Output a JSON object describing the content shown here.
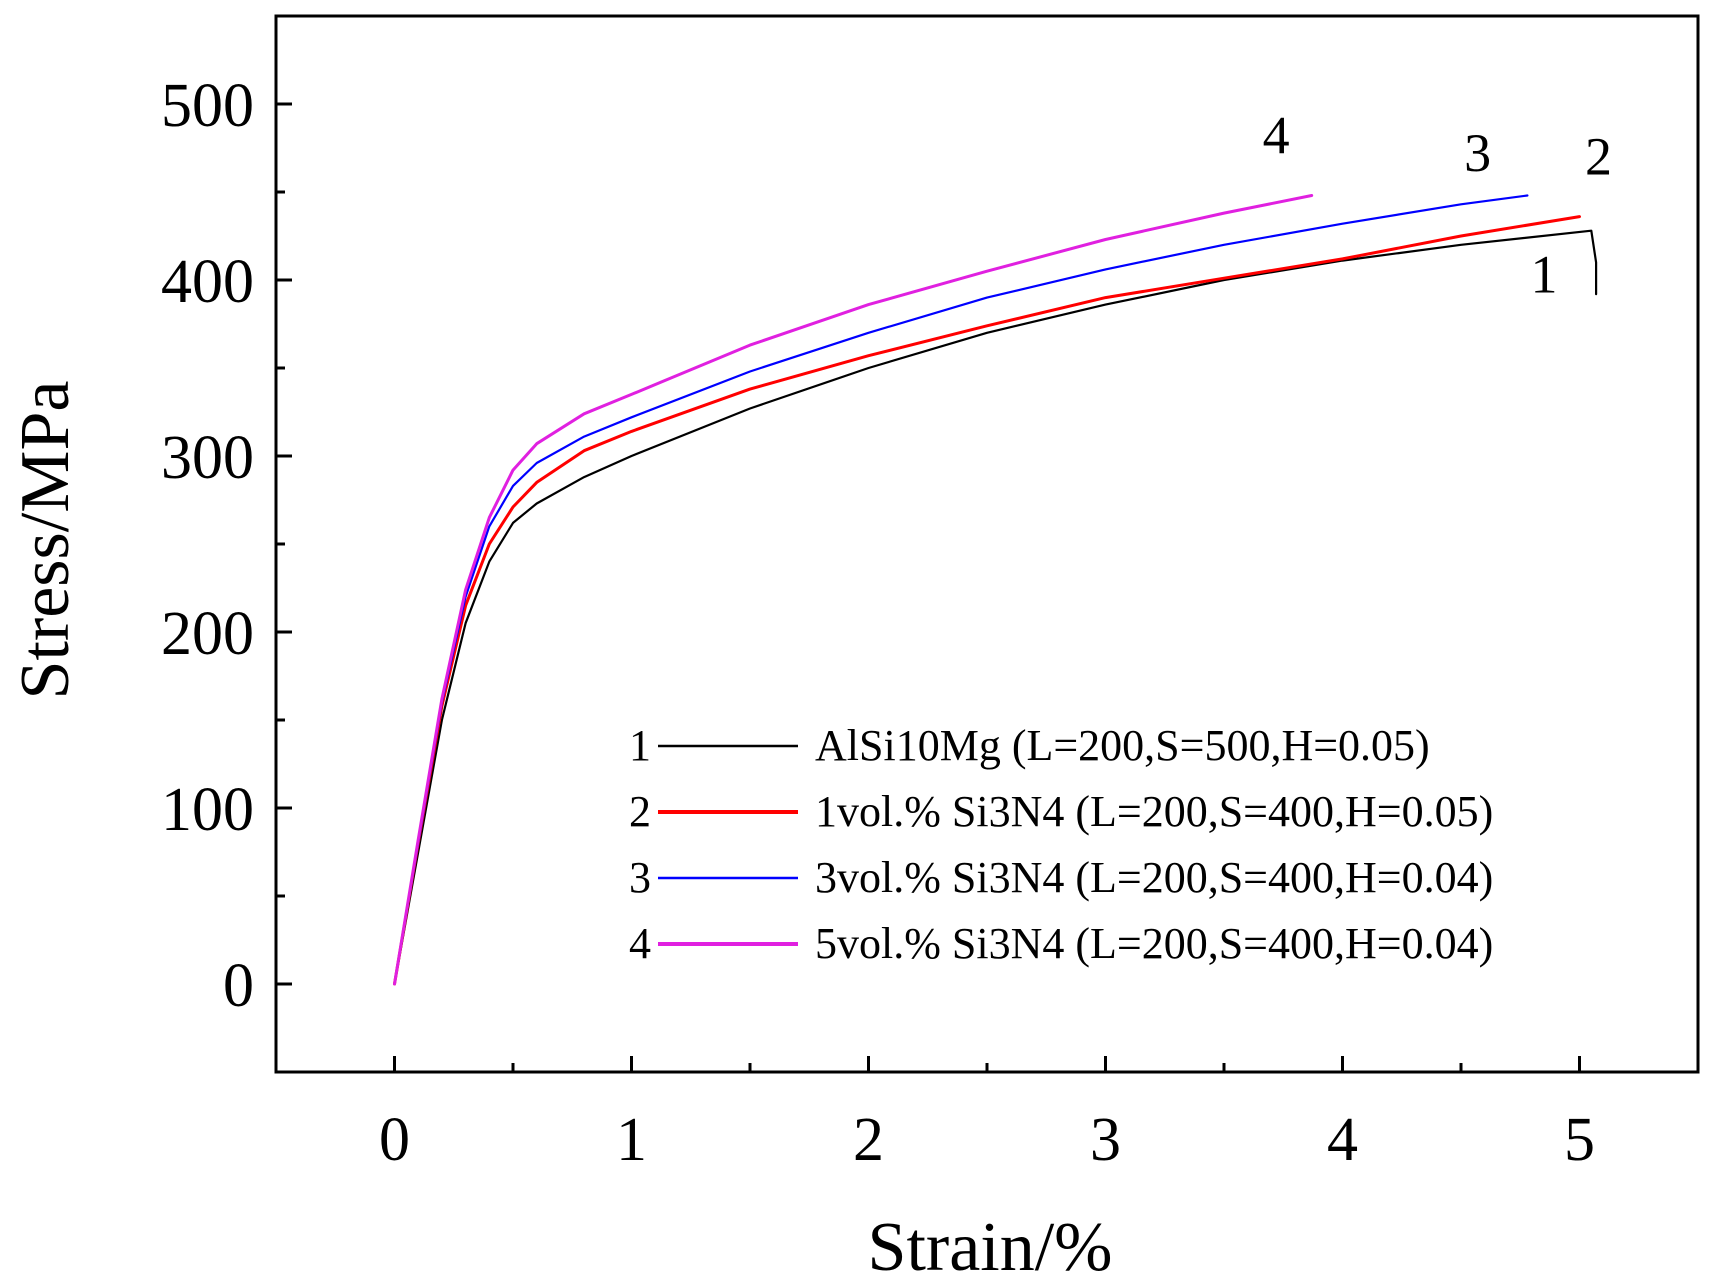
{
  "chart_data": {
    "type": "line",
    "title": "",
    "xlabel": "Strain/%",
    "ylabel": "Stress/MPa",
    "xlim": [
      -0.5,
      5.5
    ],
    "ylim": [
      -50,
      550
    ],
    "x_ticks": [
      0,
      1,
      2,
      3,
      4,
      5
    ],
    "y_ticks": [
      0,
      100,
      200,
      300,
      400,
      500
    ],
    "legend_position": "bottom-right",
    "series": [
      {
        "id": "1",
        "name": "AlSi10Mg (L=200,S=500,H=0.05)",
        "legend_number": "1",
        "color": "#000000",
        "points": [
          [
            0,
            0
          ],
          [
            0.1,
            75
          ],
          [
            0.2,
            150
          ],
          [
            0.3,
            205
          ],
          [
            0.4,
            240
          ],
          [
            0.5,
            262
          ],
          [
            0.6,
            273
          ],
          [
            0.8,
            288
          ],
          [
            1.0,
            300
          ],
          [
            1.5,
            327
          ],
          [
            2.0,
            350
          ],
          [
            2.5,
            370
          ],
          [
            3.0,
            386
          ],
          [
            3.5,
            400
          ],
          [
            4.0,
            411
          ],
          [
            4.5,
            420
          ],
          [
            5.05,
            428
          ],
          [
            5.07,
            410
          ],
          [
            5.07,
            392
          ]
        ]
      },
      {
        "id": "2",
        "name": "1vol.% Si3N4 (L=200,S=400,H=0.05)",
        "legend_number": "2",
        "color": "#ff0000",
        "points": [
          [
            0,
            0
          ],
          [
            0.1,
            80
          ],
          [
            0.2,
            158
          ],
          [
            0.3,
            215
          ],
          [
            0.4,
            250
          ],
          [
            0.5,
            271
          ],
          [
            0.6,
            285
          ],
          [
            0.8,
            303
          ],
          [
            1.0,
            314
          ],
          [
            1.5,
            338
          ],
          [
            2.0,
            357
          ],
          [
            2.5,
            374
          ],
          [
            3.0,
            390
          ],
          [
            3.5,
            401
          ],
          [
            4.0,
            412
          ],
          [
            4.5,
            425
          ],
          [
            5.0,
            436
          ]
        ]
      },
      {
        "id": "3",
        "name": "3vol.% Si3N4 (L=200,S=400,H=0.04)",
        "legend_number": "3",
        "color": "#0000ff",
        "points": [
          [
            0,
            0
          ],
          [
            0.1,
            80
          ],
          [
            0.2,
            160
          ],
          [
            0.3,
            220
          ],
          [
            0.4,
            260
          ],
          [
            0.5,
            283
          ],
          [
            0.6,
            296
          ],
          [
            0.8,
            311
          ],
          [
            1.0,
            322
          ],
          [
            1.5,
            348
          ],
          [
            2.0,
            370
          ],
          [
            2.5,
            390
          ],
          [
            3.0,
            406
          ],
          [
            3.5,
            420
          ],
          [
            4.0,
            432
          ],
          [
            4.5,
            443
          ],
          [
            4.78,
            448
          ]
        ]
      },
      {
        "id": "4",
        "name": "5vol.% Si3N4 (L=200,S=400,H=0.04)",
        "legend_number": "4",
        "color": "#e020e0",
        "points": [
          [
            0,
            0
          ],
          [
            0.1,
            82
          ],
          [
            0.2,
            162
          ],
          [
            0.3,
            224
          ],
          [
            0.4,
            265
          ],
          [
            0.5,
            292
          ],
          [
            0.6,
            307
          ],
          [
            0.8,
            324
          ],
          [
            1.0,
            335
          ],
          [
            1.5,
            363
          ],
          [
            2.0,
            386
          ],
          [
            2.5,
            405
          ],
          [
            3.0,
            423
          ],
          [
            3.5,
            438
          ],
          [
            3.87,
            448
          ]
        ]
      }
    ],
    "annotations": [
      {
        "text": "1",
        "x": 4.85,
        "y": 393
      },
      {
        "text": "2",
        "x": 5.08,
        "y": 460
      },
      {
        "text": "3",
        "x": 4.57,
        "y": 462
      },
      {
        "text": "4",
        "x": 3.72,
        "y": 472
      }
    ]
  }
}
